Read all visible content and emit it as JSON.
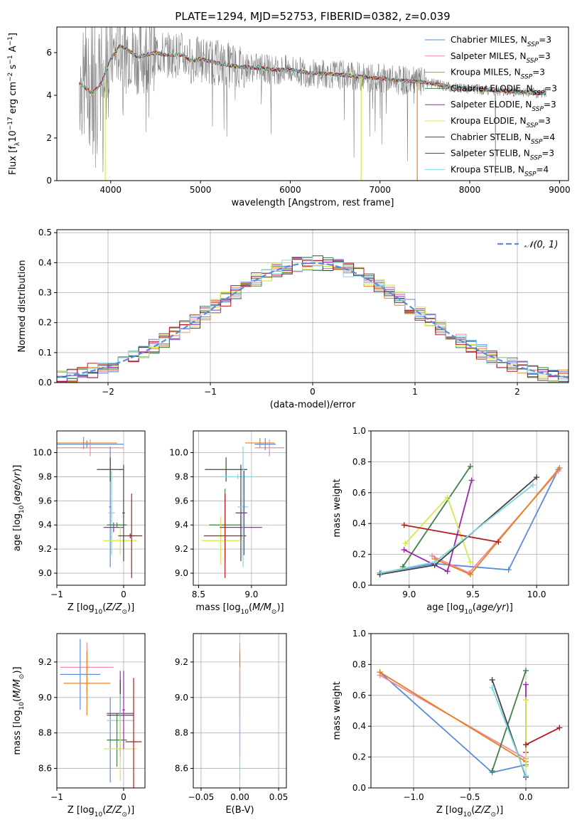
{
  "figure_title": "PLATE=1294, MJD=52753, FIBERID=0382, z=0.039",
  "colors": {
    "Chabrier MILES": "#5b8bd9",
    "Salpeter MILES": "#f08aa0",
    "Kroupa MILES": "#e8801e",
    "Chabrier ELODIE": "#3f7f4a",
    "Salpeter ELODIE": "#9b27b0",
    "Kroupa ELODIE": "#d4e84a",
    "Chabrier STELIB": "#444444",
    "Salpeter STELIB": "#b01c1c",
    "Kroupa STELIB": "#7fd8e0",
    "data": "#808080",
    "normal": "#5b8bd9"
  },
  "chart_data": [
    {
      "id": "spectrum",
      "type": "line",
      "xlabel": "wavelength [Angstrom, rest frame]",
      "ylabel": "Flux [f_λ 10^-17 erg cm^-2 s^-1 A^-1]",
      "xlim": [
        3400,
        9100
      ],
      "ylim": [
        0,
        7.2
      ],
      "xticks": [
        4000,
        5000,
        6000,
        7000,
        8000,
        9000
      ],
      "yticks": [
        0,
        2,
        4,
        6
      ],
      "grid": false,
      "legend_position": "top-right",
      "legend": [
        {
          "model": "Chabrier MILES",
          "nssp": "3"
        },
        {
          "model": "Salpeter MILES",
          "nssp": "3"
        },
        {
          "model": "Kroupa MILES",
          "nssp": "3"
        },
        {
          "model": "Chabrier ELODIE",
          "nssp": "3"
        },
        {
          "model": "Salpeter ELODIE",
          "nssp": "3"
        },
        {
          "model": "Kroupa ELODIE",
          "nssp": "3"
        },
        {
          "model": "Chabrier STELIB",
          "nssp": "4"
        },
        {
          "model": "Salpeter STELIB",
          "nssp": "3"
        },
        {
          "model": "Kroupa STELIB",
          "nssp": "4"
        }
      ],
      "continuum": {
        "x": [
          3650,
          3700,
          3800,
          3900,
          4000,
          4100,
          4200,
          4300,
          4400,
          4500,
          4600,
          4700,
          4800,
          4900,
          5000,
          5200,
          5400,
          5600,
          5800,
          6000,
          6200,
          6400,
          6600,
          6800,
          7000,
          7200,
          7400,
          7600,
          7800,
          8000,
          8200,
          8400,
          8600,
          8800
        ],
        "y": [
          4.6,
          4.4,
          4.1,
          4.6,
          5.7,
          6.3,
          6.1,
          5.8,
          5.9,
          6.0,
          5.9,
          5.9,
          5.9,
          5.6,
          5.7,
          5.5,
          5.35,
          5.3,
          5.2,
          5.2,
          5.05,
          5.0,
          4.95,
          4.85,
          4.8,
          4.7,
          4.65,
          4.55,
          4.35,
          4.3,
          4.25,
          4.2,
          4.15,
          4.1
        ]
      }
    },
    {
      "id": "residuals",
      "type": "step",
      "xlabel": "(data-model)/error",
      "ylabel": "Normed distribution",
      "xlim": [
        -2.5,
        2.5
      ],
      "ylim": [
        0,
        0.51
      ],
      "xticks": [
        -2,
        -1,
        0,
        1,
        2
      ],
      "yticks": [
        0.0,
        0.1,
        0.2,
        0.3,
        0.4,
        0.5
      ],
      "grid": true,
      "legend_position": "top-right",
      "normal_label": "𝒩(0, 1)"
    },
    {
      "id": "age_vs_Z",
      "type": "errorbar",
      "xlabel": "Z [log10(Z/Z⊙)]",
      "ylabel": "age [log10(age/yr)]",
      "xlim": [
        -1.0,
        0.32
      ],
      "ylim": [
        8.9,
        10.18
      ],
      "xticks": [
        -1,
        0
      ],
      "yticks": [
        9.0,
        9.2,
        9.4,
        9.6,
        9.8,
        10.0
      ],
      "grid": true,
      "points": [
        {
          "model": "Chabrier MILES",
          "x": -0.55,
          "xerr": 0.55,
          "y": 10.07,
          "yerr": 0.03
        },
        {
          "model": "Salpeter MILES",
          "x": -0.5,
          "xerr": 0.5,
          "y": 10.04,
          "yerr": 0.07
        },
        {
          "model": "Kroupa MILES",
          "x": -0.6,
          "xerr": 0.5,
          "y": 10.08,
          "yerr": 0.05
        },
        {
          "model": "Chabrier MILES",
          "x": -0.2,
          "xerr": 0.02,
          "y": 9.55,
          "yerr": 0.5
        },
        {
          "model": "Chabrier STELIB",
          "x": -0.2,
          "xerr": 0.2,
          "y": 9.86,
          "yerr": 0.1
        },
        {
          "model": "Kroupa STELIB",
          "x": -0.18,
          "xerr": 0.05,
          "y": 9.5,
          "yerr": 0.35
        },
        {
          "model": "Salpeter ELODIE",
          "x": -0.15,
          "xerr": 0.15,
          "y": 9.38,
          "yerr": 0.04
        },
        {
          "model": "Chabrier ELODIE",
          "x": -0.1,
          "xerr": 0.15,
          "y": 9.4,
          "yerr": 0.02
        },
        {
          "model": "Kroupa ELODIE",
          "x": -0.05,
          "xerr": 0.25,
          "y": 9.27,
          "yerr": 0.12
        },
        {
          "model": "Chabrier STELIB",
          "x": 0.0,
          "xerr": 0.02,
          "y": 9.5,
          "yerr": 0.4
        },
        {
          "model": "Salpeter STELIB",
          "x": 0.12,
          "xerr": 0.05,
          "y": 9.31,
          "yerr": 0.35
        },
        {
          "model": "Salpeter STELIB",
          "x": 0.1,
          "xerr": 0.18,
          "y": 9.31,
          "yerr": 0.02
        }
      ]
    },
    {
      "id": "age_vs_mass",
      "type": "errorbar",
      "xlabel": "mass [log10(M/M⊙)]",
      "ylabel": "",
      "xlim": [
        8.45,
        9.33
      ],
      "ylim": [
        8.9,
        10.18
      ],
      "xticks": [
        8.5,
        9.0
      ],
      "yticks": [
        9.0,
        9.2,
        9.4,
        9.6,
        9.8,
        10.0
      ],
      "grid": true,
      "points": [
        {
          "model": "Kroupa MILES",
          "x": 9.08,
          "xerr": 0.14,
          "y": 10.08,
          "yerr": 0.04
        },
        {
          "model": "Salpeter MILES",
          "x": 9.17,
          "xerr": 0.14,
          "y": 10.04,
          "yerr": 0.07
        },
        {
          "model": "Chabrier MILES",
          "x": 9.13,
          "xerr": 0.1,
          "y": 10.07,
          "yerr": 0.05
        },
        {
          "model": "Chabrier STELIB",
          "x": 8.76,
          "xerr": 0.2,
          "y": 9.86,
          "yerr": 0.1
        },
        {
          "model": "Kroupa STELIB",
          "x": 8.87,
          "xerr": 0.15,
          "y": 9.8,
          "yerr": 0.02
        },
        {
          "model": "Chabrier ELODIE",
          "x": 8.75,
          "xerr": 0.15,
          "y": 9.4,
          "yerr": 0.3
        },
        {
          "model": "Kroupa ELODIE",
          "x": 8.71,
          "xerr": 0.18,
          "y": 9.27,
          "yerr": 0.2
        },
        {
          "model": "Salpeter ELODIE",
          "x": 8.9,
          "xerr": 0.2,
          "y": 9.38,
          "yerr": 0.1
        },
        {
          "model": "Salpeter STELIB",
          "x": 8.75,
          "xerr": 0.2,
          "y": 9.31,
          "yerr": 0.35
        },
        {
          "model": "Chabrier STELIB",
          "x": 8.9,
          "xerr": 0.05,
          "y": 9.5,
          "yerr": 0.4
        },
        {
          "model": "Kroupa STELIB",
          "x": 8.92,
          "xerr": 0.05,
          "y": 9.55,
          "yerr": 0.5
        },
        {
          "model": "Salpeter ELODIE",
          "x": 8.93,
          "xerr": 0.03,
          "y": 9.5,
          "yerr": 0.35
        }
      ]
    },
    {
      "id": "weight_vs_age",
      "type": "line",
      "xlabel": "age [log10(age/yr)]",
      "ylabel": "mass weight",
      "xlim": [
        8.7,
        10.25
      ],
      "ylim": [
        0,
        1.0
      ],
      "xticks": [
        9.0,
        9.5,
        10.0
      ],
      "yticks": [
        0.0,
        0.2,
        0.4,
        0.6,
        0.8,
        1.0
      ],
      "grid": true,
      "series": [
        {
          "model": "Chabrier MILES",
          "x": [
            8.77,
            9.2,
            9.78,
            10.17
          ],
          "y": [
            0.08,
            0.14,
            0.1,
            0.75
          ]
        },
        {
          "model": "Salpeter MILES",
          "x": [
            9.18,
            9.47,
            10.17
          ],
          "y": [
            0.19,
            0.08,
            0.74
          ]
        },
        {
          "model": "Kroupa MILES",
          "x": [
            9.2,
            9.48,
            10.18
          ],
          "y": [
            0.17,
            0.07,
            0.76
          ]
        },
        {
          "model": "Chabrier ELODIE",
          "x": [
            8.95,
            9.48
          ],
          "y": [
            0.12,
            0.77
          ]
        },
        {
          "model": "Salpeter ELODIE",
          "x": [
            8.96,
            9.3,
            9.49
          ],
          "y": [
            0.23,
            0.09,
            0.68
          ]
        },
        {
          "model": "Kroupa ELODIE",
          "x": [
            8.97,
            9.3,
            9.48
          ],
          "y": [
            0.27,
            0.57,
            0.15
          ]
        },
        {
          "model": "Chabrier STELIB",
          "x": [
            8.77,
            9.2,
            10.0
          ],
          "y": [
            0.07,
            0.13,
            0.7
          ]
        },
        {
          "model": "Salpeter STELIB",
          "x": [
            8.96,
            9.7
          ],
          "y": [
            0.39,
            0.28
          ]
        },
        {
          "model": "Kroupa STELIB",
          "x": [
            8.78,
            9.2,
            9.97
          ],
          "y": [
            0.08,
            0.15,
            0.65
          ]
        }
      ]
    },
    {
      "id": "mass_vs_Z",
      "type": "errorbar",
      "xlabel": "Z [log10(Z/Z⊙)]",
      "ylabel": "mass [log10(M/M⊙)]",
      "xlim": [
        -1.0,
        0.32
      ],
      "ylim": [
        8.49,
        9.36
      ],
      "xticks": [
        -1,
        0
      ],
      "yticks": [
        8.6,
        8.8,
        9.0,
        9.2
      ],
      "grid": true,
      "points": [
        {
          "model": "Salpeter MILES",
          "x": -0.55,
          "xerr": 0.4,
          "y": 9.17,
          "yerr": 0.14
        },
        {
          "model": "Chabrier MILES",
          "x": -0.65,
          "xerr": 0.3,
          "y": 9.13,
          "yerr": 0.2
        },
        {
          "model": "Kroupa MILES",
          "x": -0.55,
          "xerr": 0.35,
          "y": 9.08,
          "yerr": 0.18
        },
        {
          "model": "Chabrier MILES",
          "x": -0.2,
          "xerr": 0.02,
          "y": 8.76,
          "yerr": 0.24
        },
        {
          "model": "Salpeter ELODIE",
          "x": -0.05,
          "xerr": 0.2,
          "y": 8.91,
          "yerr": 0.24
        },
        {
          "model": "Chabrier STELIB",
          "x": -0.05,
          "xerr": 0.2,
          "y": 8.9,
          "yerr": 0.2
        },
        {
          "model": "Kroupa STELIB",
          "x": -0.05,
          "xerr": 0.2,
          "y": 8.87,
          "yerr": 0.15
        },
        {
          "model": "Chabrier ELODIE",
          "x": -0.1,
          "xerr": 0.15,
          "y": 8.76,
          "yerr": 0.15
        },
        {
          "model": "Kroupa ELODIE",
          "x": -0.05,
          "xerr": 0.25,
          "y": 8.71,
          "yerr": 0.18
        },
        {
          "model": "Salpeter STELIB",
          "x": 0.15,
          "xerr": 0.12,
          "y": 8.75,
          "yerr": 0.36
        },
        {
          "model": "Salpeter ELODIE",
          "x": 0.0,
          "xerr": 0.02,
          "y": 8.93,
          "yerr": 0.22
        }
      ]
    },
    {
      "id": "mass_vs_EBV",
      "type": "errorbar",
      "xlabel": "E(B-V)",
      "ylabel": "",
      "xlim": [
        -0.06,
        0.06
      ],
      "ylim": [
        8.49,
        9.36
      ],
      "xticks": [
        -0.05,
        0.0,
        0.05
      ],
      "yticks": [
        8.6,
        8.8,
        9.0,
        9.2
      ],
      "grid": true,
      "points": [
        {
          "model": "Salpeter MILES",
          "x": 0.0,
          "xerr": 0.0,
          "y": 9.17,
          "yerr": 0.14
        },
        {
          "model": "Kroupa MILES",
          "x": 0.0,
          "xerr": 0.0,
          "y": 9.08,
          "yerr": 0.18
        },
        {
          "model": "Salpeter ELODIE",
          "x": 0.0,
          "xerr": 0.0,
          "y": 8.91,
          "yerr": 0.24
        },
        {
          "model": "Kroupa STELIB",
          "x": 0.0,
          "xerr": 0.0,
          "y": 8.85,
          "yerr": 0.32
        }
      ]
    },
    {
      "id": "weight_vs_Z",
      "type": "line",
      "xlabel": "Z [log10(Z/Z⊙)]",
      "ylabel": "mass weight",
      "xlim": [
        -1.38,
        0.38
      ],
      "ylim": [
        0,
        1.0
      ],
      "xticks": [
        -1.0,
        -0.5,
        0.0
      ],
      "yticks": [
        0.0,
        0.2,
        0.4,
        0.6,
        0.8,
        1.0
      ],
      "grid": true,
      "series": [
        {
          "model": "Chabrier MILES",
          "x": [
            -1.3,
            -0.3,
            0.0
          ],
          "y": [
            0.75,
            0.1,
            0.15
          ]
        },
        {
          "model": "Salpeter MILES",
          "x": [
            -1.3,
            0.0
          ],
          "y": [
            0.73,
            0.19
          ]
        },
        {
          "model": "Kroupa MILES",
          "x": [
            -1.3,
            0.0
          ],
          "y": [
            0.75,
            0.17
          ]
        },
        {
          "model": "Chabrier ELODIE",
          "x": [
            -0.3,
            0.0
          ],
          "y": [
            0.11,
            0.76
          ]
        },
        {
          "model": "Salpeter ELODIE",
          "x": [
            0.0,
            0.0
          ],
          "y": [
            0.67,
            0.23
          ]
        },
        {
          "model": "Kroupa ELODIE",
          "x": [
            0.0,
            0.0
          ],
          "y": [
            0.57,
            0.14
          ]
        },
        {
          "model": "Chabrier STELIB",
          "x": [
            -0.3,
            0.0
          ],
          "y": [
            0.7,
            0.07
          ]
        },
        {
          "model": "Salpeter STELIB",
          "x": [
            0.0,
            0.3
          ],
          "y": [
            0.28,
            0.39
          ]
        },
        {
          "model": "Kroupa STELIB",
          "x": [
            -0.3,
            0.0
          ],
          "y": [
            0.65,
            0.08
          ]
        }
      ]
    }
  ]
}
